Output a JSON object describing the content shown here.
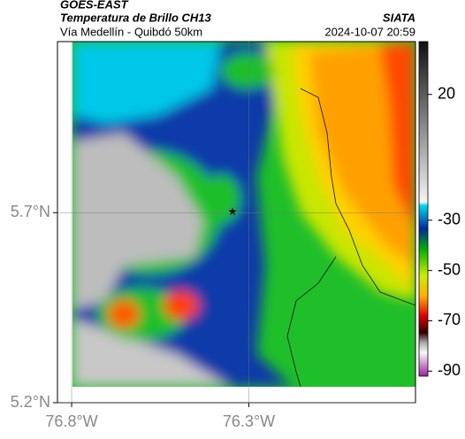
{
  "header": {
    "title": "GOES-EAST",
    "subtitle": "Temperatura de Brillo CH13",
    "source": "SIATA",
    "route": "Vía Medellín - Quibdó 50km",
    "timestamp": "2024-10-07 20:59"
  },
  "map": {
    "xlim": [
      -76.84,
      -75.83
    ],
    "ylim": [
      5.2,
      6.15
    ],
    "xticks": [
      {
        "value": -76.8,
        "label": "76.8°W"
      },
      {
        "value": -76.3,
        "label": "76.3°W"
      }
    ],
    "yticks": [
      {
        "value": 5.2,
        "label": "5.2°N"
      },
      {
        "value": 5.7,
        "label": "5.7°N"
      }
    ],
    "grid": true
  },
  "colorbar": {
    "lim": [
      -92,
      41
    ],
    "ticks": [
      20,
      -30,
      -50,
      -70,
      -90
    ]
  }
}
